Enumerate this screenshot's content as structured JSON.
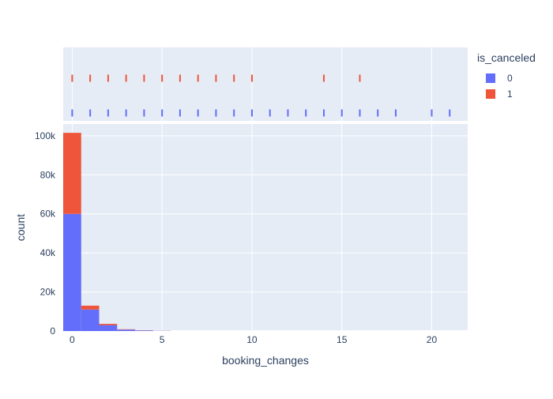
{
  "chart_data": {
    "type": "bar",
    "subtype": "stacked-histogram-with-rug",
    "xlabel": "booking_changes",
    "ylabel": "count",
    "xlim": [
      -0.5,
      22
    ],
    "ylim": [
      0,
      106000
    ],
    "x_ticks": [
      0,
      5,
      10,
      15,
      20
    ],
    "x_tick_labels": [
      "0",
      "5",
      "10",
      "15",
      "20"
    ],
    "y_ticks": [
      0,
      20000,
      40000,
      60000,
      80000,
      100000
    ],
    "y_tick_labels": [
      "0",
      "20k",
      "40k",
      "60k",
      "80k",
      "100k"
    ],
    "grid": true,
    "legend": {
      "title": "is_canceled",
      "placement": "top-right",
      "entries": [
        {
          "label": "0",
          "color": "#636efa"
        },
        {
          "label": "1",
          "color": "#ef553b"
        }
      ]
    },
    "categories": [
      0,
      1,
      2,
      3,
      4,
      5
    ],
    "series": [
      {
        "name": "0",
        "color": "#636efa",
        "values": [
          60000,
          11000,
          3000,
          700,
          300,
          100
        ]
      },
      {
        "name": "1",
        "color": "#ef553b",
        "values": [
          41500,
          2000,
          700,
          200,
          100,
          30
        ]
      }
    ],
    "rug": [
      {
        "name": "0",
        "color": "#636efa",
        "x": [
          0,
          1,
          2,
          3,
          4,
          5,
          6,
          7,
          8,
          9,
          10,
          11,
          12,
          13,
          14,
          15,
          16,
          17,
          18,
          20,
          21
        ]
      },
      {
        "name": "1",
        "color": "#ef553b",
        "x": [
          0,
          1,
          2,
          3,
          4,
          5,
          6,
          7,
          8,
          9,
          10,
          14,
          16
        ]
      }
    ]
  },
  "colors": {
    "plot_background": "#e5ecf6",
    "grid": "#ffffff",
    "text": "#2a3f5f"
  }
}
